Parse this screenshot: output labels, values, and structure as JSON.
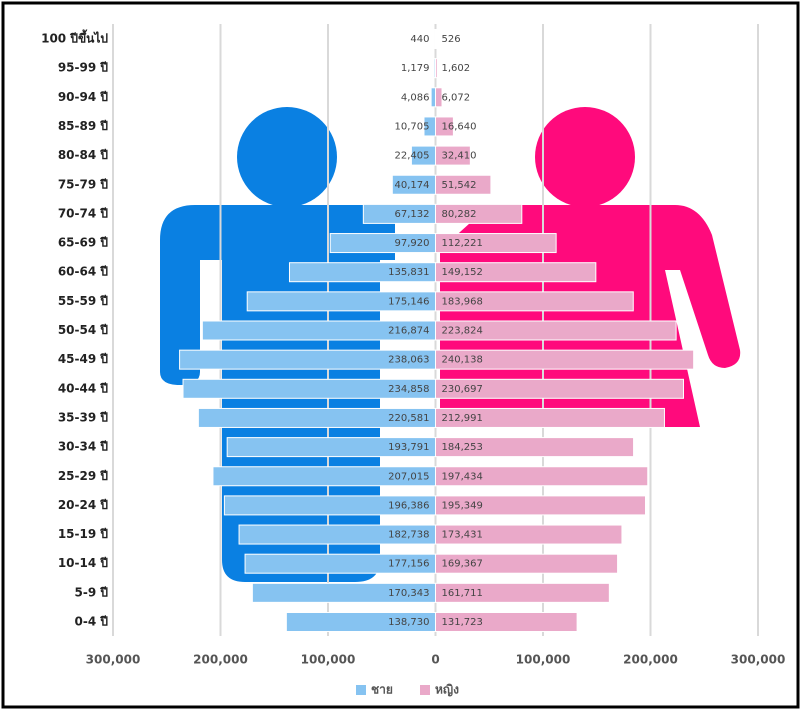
{
  "chart_data": {
    "type": "population-pyramid",
    "categories": [
      "100 ปีขึ้นไป",
      "95-99 ปี",
      "90-94 ปี",
      "85-89 ปี",
      "80-84 ปี",
      "75-79 ปี",
      "70-74 ปี",
      "65-69 ปี",
      "60-64 ปี",
      "55-59 ปี",
      "50-54 ปี",
      "45-49 ปี",
      "40-44 ปี",
      "35-39 ปี",
      "30-34 ปี",
      "25-29 ปี",
      "20-24 ปี",
      "15-19 ปี",
      "10-14 ปี",
      "5-9 ปี",
      "0-4 ปี"
    ],
    "series": [
      {
        "name": "ชาย",
        "color": "#86c3f1",
        "side": "left",
        "values": [
          440,
          1179,
          4086,
          10705,
          22405,
          40174,
          67132,
          97920,
          135831,
          175146,
          216874,
          238063,
          234858,
          220581,
          193791,
          207015,
          196386,
          182738,
          177156,
          170343,
          138730
        ],
        "value_labels": [
          "440",
          "1,179",
          "4,086",
          "10,705",
          "22,405",
          "40,174",
          "67,132",
          "97,920",
          "135,831",
          "175,146",
          "216,874",
          "238,063",
          "234,858",
          "220,581",
          "193,791",
          "207,015",
          "196,386",
          "182,738",
          "177,156",
          "170,343",
          "138,730"
        ]
      },
      {
        "name": "หญิง",
        "color": "#eaa9c9",
        "side": "right",
        "values": [
          526,
          1602,
          6072,
          16640,
          32410,
          51542,
          80282,
          112221,
          149152,
          183968,
          223824,
          240138,
          230697,
          212991,
          184253,
          197434,
          195349,
          173431,
          169367,
          161711,
          131723
        ],
        "value_labels": [
          "526",
          "1,602",
          "6,072",
          "16,640",
          "32,410",
          "51,542",
          "80,282",
          "112,221",
          "149,152",
          "183,968",
          "223,824",
          "240,138",
          "230,697",
          "212,991",
          "184,253",
          "197,434",
          "195,349",
          "173,431",
          "169,367",
          "161,711",
          "131,723"
        ]
      }
    ],
    "xlim": [
      -300000,
      300000
    ],
    "xticks": [
      {
        "value": -300000,
        "label": "300,000"
      },
      {
        "value": -200000,
        "label": "200,000"
      },
      {
        "value": -100000,
        "label": "100,000"
      },
      0,
      {
        "value": 100000,
        "label": "100,000"
      },
      {
        "value": 200000,
        "label": "200,000"
      },
      {
        "value": 300000,
        "label": "300,000"
      }
    ],
    "grid": true
  }
}
